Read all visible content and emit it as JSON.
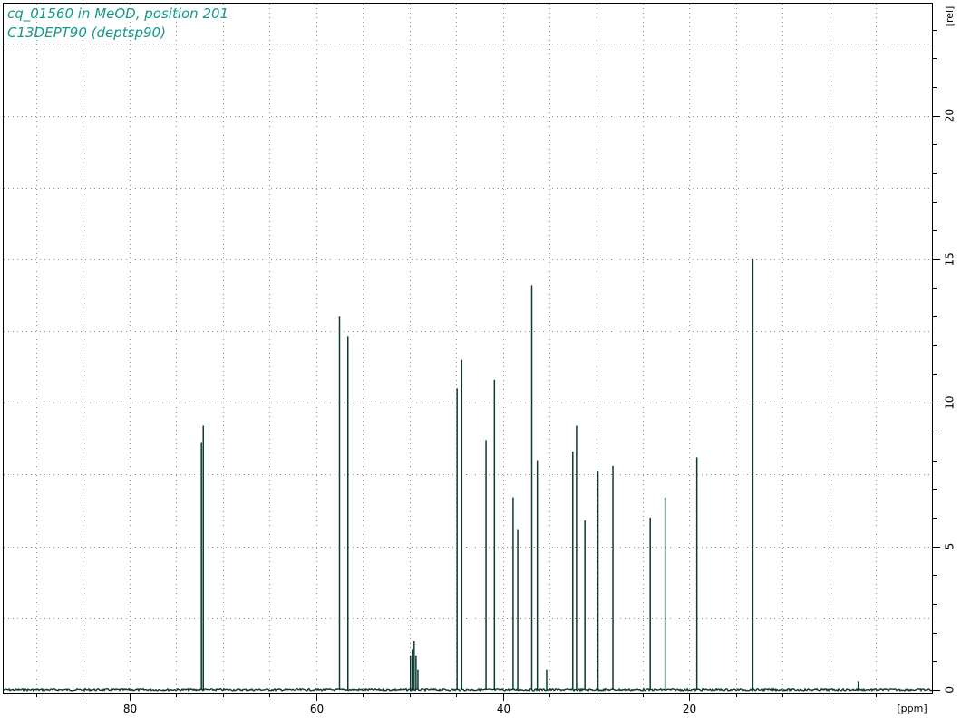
{
  "header": {
    "line1": "cq_01560 in MeOD, position 201",
    "line2": "C13DEPT90 (deptsp90)"
  },
  "colors": {
    "spectrum": "#0b3b33",
    "title_text": "#12998a",
    "grid": "#909090",
    "frame": "#000000"
  },
  "chart_data": {
    "type": "line",
    "title": "cq_01560 in MeOD, position 201",
    "subtitle": "C13DEPT90 (deptsp90)",
    "xlabel": "[ppm]",
    "ylabel": "[rel]",
    "xlim": [
      93.5,
      -6.0
    ],
    "x_reversed": true,
    "ylim": [
      -0.1,
      23.9
    ],
    "x_major_ticks": [
      80,
      60,
      40,
      20
    ],
    "x_major_labels": [
      "80",
      "60",
      "40",
      "20"
    ],
    "x_minor_ticks": [
      90,
      85,
      75,
      70,
      65,
      55,
      50,
      45,
      35,
      30,
      25,
      15,
      10,
      5,
      0
    ],
    "y_major_ticks": [
      0,
      5,
      10,
      15,
      20
    ],
    "y_major_labels": [
      "0",
      "5",
      "10",
      "15",
      "20"
    ],
    "y_grid_step": 2.5,
    "grid": true,
    "legend": "none",
    "peaks": [
      {
        "ppm": 72.3,
        "height": 8.6
      },
      {
        "ppm": 72.1,
        "height": 9.2
      },
      {
        "ppm": 57.5,
        "height": 13.0
      },
      {
        "ppm": 56.6,
        "height": 12.3
      },
      {
        "ppm": 49.9,
        "height": 1.2
      },
      {
        "ppm": 49.7,
        "height": 1.4
      },
      {
        "ppm": 49.5,
        "height": 1.7
      },
      {
        "ppm": 49.3,
        "height": 1.2
      },
      {
        "ppm": 49.1,
        "height": 0.7
      },
      {
        "ppm": 44.9,
        "height": 10.5
      },
      {
        "ppm": 44.4,
        "height": 11.5
      },
      {
        "ppm": 41.8,
        "height": 8.7
      },
      {
        "ppm": 40.9,
        "height": 10.8
      },
      {
        "ppm": 38.9,
        "height": 6.7
      },
      {
        "ppm": 38.4,
        "height": 5.6
      },
      {
        "ppm": 36.9,
        "height": 14.1
      },
      {
        "ppm": 36.3,
        "height": 8.0
      },
      {
        "ppm": 35.3,
        "height": 0.7
      },
      {
        "ppm": 32.5,
        "height": 8.3
      },
      {
        "ppm": 32.1,
        "height": 9.2
      },
      {
        "ppm": 31.2,
        "height": 5.9
      },
      {
        "ppm": 29.8,
        "height": 7.6
      },
      {
        "ppm": 28.2,
        "height": 7.8
      },
      {
        "ppm": 24.2,
        "height": 6.0
      },
      {
        "ppm": 22.6,
        "height": 6.7
      },
      {
        "ppm": 19.2,
        "height": 8.1
      },
      {
        "ppm": 13.2,
        "height": 15.0
      },
      {
        "ppm": 1.9,
        "height": 0.3
      }
    ]
  }
}
